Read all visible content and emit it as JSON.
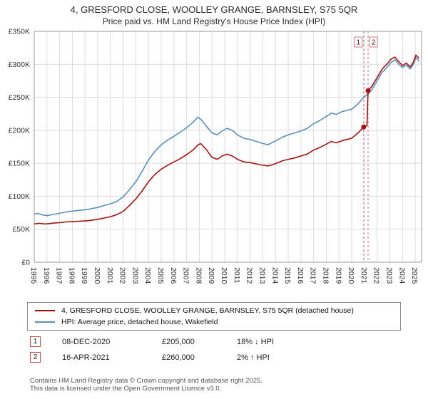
{
  "header": {
    "title": "4, GRESFORD CLOSE, WOOLLEY GRANGE, BARNSLEY, S75 5QR",
    "subtitle": "Price paid vs. HM Land Registry's House Price Index (HPI)"
  },
  "chart_data": {
    "type": "line",
    "x_range": [
      1995,
      2025.5
    ],
    "y_range": [
      0,
      350000
    ],
    "grid": true,
    "legend_position": "bottom",
    "y_ticks": [
      {
        "v": 0,
        "label": "£0"
      },
      {
        "v": 50000,
        "label": "£50K"
      },
      {
        "v": 100000,
        "label": "£100K"
      },
      {
        "v": 150000,
        "label": "£150K"
      },
      {
        "v": 200000,
        "label": "£200K"
      },
      {
        "v": 250000,
        "label": "£250K"
      },
      {
        "v": 300000,
        "label": "£300K"
      },
      {
        "v": 350000,
        "label": "£350K"
      }
    ],
    "x_ticks": [
      1995,
      1996,
      1997,
      1998,
      1999,
      2000,
      2001,
      2002,
      2003,
      2004,
      2005,
      2006,
      2007,
      2008,
      2009,
      2010,
      2011,
      2012,
      2013,
      2014,
      2015,
      2016,
      2017,
      2018,
      2019,
      2020,
      2021,
      2022,
      2023,
      2024,
      2025
    ],
    "series": [
      {
        "id": "price-paid",
        "name": "4, GRESFORD CLOSE, WOOLLEY GRANGE, BARNSLEY, S75 5QR (detached house)",
        "color": "#a51111",
        "points": [
          [
            1995.0,
            58000
          ],
          [
            1995.4,
            59000
          ],
          [
            1995.8,
            58000
          ],
          [
            1996.2,
            58500
          ],
          [
            1996.6,
            59500
          ],
          [
            1997.0,
            60000
          ],
          [
            1997.5,
            61000
          ],
          [
            1998.0,
            61500
          ],
          [
            1998.5,
            62000
          ],
          [
            1999.0,
            62500
          ],
          [
            1999.5,
            63500
          ],
          [
            2000.0,
            65000
          ],
          [
            2000.5,
            67000
          ],
          [
            2001.0,
            69000
          ],
          [
            2001.5,
            72000
          ],
          [
            2002.0,
            77000
          ],
          [
            2002.5,
            86000
          ],
          [
            2003.0,
            96000
          ],
          [
            2003.5,
            108000
          ],
          [
            2004.0,
            122000
          ],
          [
            2004.5,
            133000
          ],
          [
            2005.0,
            141000
          ],
          [
            2005.5,
            147000
          ],
          [
            2006.0,
            152000
          ],
          [
            2006.5,
            157000
          ],
          [
            2007.0,
            163000
          ],
          [
            2007.5,
            170000
          ],
          [
            2007.9,
            178000
          ],
          [
            2008.1,
            180000
          ],
          [
            2008.5,
            172000
          ],
          [
            2009.0,
            159000
          ],
          [
            2009.4,
            156000
          ],
          [
            2009.8,
            161000
          ],
          [
            2010.2,
            164000
          ],
          [
            2010.6,
            161000
          ],
          [
            2011.0,
            156000
          ],
          [
            2011.5,
            152000
          ],
          [
            2012.0,
            151000
          ],
          [
            2012.5,
            149000
          ],
          [
            2013.0,
            147000
          ],
          [
            2013.4,
            146000
          ],
          [
            2013.8,
            148000
          ],
          [
            2014.2,
            151000
          ],
          [
            2014.6,
            154000
          ],
          [
            2015.0,
            156000
          ],
          [
            2015.5,
            158000
          ],
          [
            2016.0,
            161000
          ],
          [
            2016.5,
            164000
          ],
          [
            2017.0,
            170000
          ],
          [
            2017.5,
            174000
          ],
          [
            2018.0,
            179000
          ],
          [
            2018.4,
            183000
          ],
          [
            2018.8,
            181000
          ],
          [
            2019.2,
            184000
          ],
          [
            2019.6,
            186000
          ],
          [
            2020.0,
            188000
          ],
          [
            2020.5,
            196000
          ],
          [
            2020.94,
            205000
          ],
          [
            2021.2,
            207000
          ],
          [
            2021.29,
            260000
          ],
          [
            2021.6,
            267000
          ],
          [
            2022.0,
            280000
          ],
          [
            2022.4,
            293000
          ],
          [
            2022.8,
            301000
          ],
          [
            2023.1,
            308000
          ],
          [
            2023.4,
            311000
          ],
          [
            2023.7,
            304000
          ],
          [
            2024.0,
            298000
          ],
          [
            2024.3,
            302000
          ],
          [
            2024.6,
            296000
          ],
          [
            2024.85,
            303000
          ],
          [
            2025.05,
            314000
          ],
          [
            2025.3,
            309000
          ]
        ]
      },
      {
        "id": "hpi",
        "name": "HPI: Average price, detached house, Wakefield",
        "color": "#5b8fc0",
        "points": [
          [
            1995.0,
            73000
          ],
          [
            1995.3,
            74000
          ],
          [
            1995.6,
            72000
          ],
          [
            1996.0,
            70500
          ],
          [
            1996.4,
            72000
          ],
          [
            1996.8,
            73500
          ],
          [
            1997.2,
            75000
          ],
          [
            1997.6,
            76500
          ],
          [
            1998.0,
            77500
          ],
          [
            1998.5,
            78500
          ],
          [
            1999.0,
            79500
          ],
          [
            1999.5,
            81000
          ],
          [
            2000.0,
            83000
          ],
          [
            2000.5,
            86000
          ],
          [
            2001.0,
            88500
          ],
          [
            2001.5,
            92000
          ],
          [
            2002.0,
            99000
          ],
          [
            2002.5,
            110000
          ],
          [
            2003.0,
            122000
          ],
          [
            2003.5,
            138000
          ],
          [
            2004.0,
            155000
          ],
          [
            2004.5,
            168000
          ],
          [
            2005.0,
            178000
          ],
          [
            2005.5,
            185000
          ],
          [
            2006.0,
            191000
          ],
          [
            2006.5,
            197000
          ],
          [
            2007.0,
            204000
          ],
          [
            2007.5,
            212000
          ],
          [
            2007.9,
            220000
          ],
          [
            2008.2,
            215000
          ],
          [
            2008.6,
            205000
          ],
          [
            2009.0,
            196000
          ],
          [
            2009.4,
            193000
          ],
          [
            2009.8,
            199000
          ],
          [
            2010.2,
            203000
          ],
          [
            2010.6,
            200000
          ],
          [
            2011.0,
            193000
          ],
          [
            2011.5,
            188000
          ],
          [
            2012.0,
            186000
          ],
          [
            2012.5,
            183000
          ],
          [
            2013.0,
            180000
          ],
          [
            2013.4,
            178000
          ],
          [
            2013.8,
            182000
          ],
          [
            2014.2,
            186000
          ],
          [
            2014.6,
            190000
          ],
          [
            2015.0,
            193000
          ],
          [
            2015.5,
            196000
          ],
          [
            2016.0,
            199000
          ],
          [
            2016.5,
            203000
          ],
          [
            2017.0,
            210000
          ],
          [
            2017.5,
            215000
          ],
          [
            2018.0,
            221000
          ],
          [
            2018.4,
            226000
          ],
          [
            2018.8,
            224000
          ],
          [
            2019.2,
            228000
          ],
          [
            2019.6,
            230000
          ],
          [
            2020.0,
            232000
          ],
          [
            2020.5,
            240000
          ],
          [
            2020.94,
            250000
          ],
          [
            2021.29,
            255000
          ],
          [
            2021.6,
            262000
          ],
          [
            2022.0,
            275000
          ],
          [
            2022.4,
            288000
          ],
          [
            2022.8,
            296000
          ],
          [
            2023.1,
            303000
          ],
          [
            2023.4,
            307000
          ],
          [
            2023.7,
            300000
          ],
          [
            2024.0,
            295000
          ],
          [
            2024.3,
            299000
          ],
          [
            2024.6,
            293000
          ],
          [
            2024.85,
            300000
          ],
          [
            2025.05,
            310000
          ],
          [
            2025.3,
            305000
          ]
        ]
      }
    ],
    "sale_vlines": [
      2020.94,
      2021.29
    ],
    "markers": [
      {
        "label": "1",
        "x": 2020.94,
        "y": 205000
      },
      {
        "label": "2",
        "x": 2021.29,
        "y": 260000
      }
    ]
  },
  "legend": {
    "items": [
      {
        "label": "4, GRESFORD CLOSE, WOOLLEY GRANGE, BARNSLEY, S75 5QR (detached house)",
        "color": "#a51111"
      },
      {
        "label": "HPI: Average price, detached house, Wakefield",
        "color": "#5b8fc0"
      }
    ]
  },
  "transactions": [
    {
      "num": "1",
      "date": "08-DEC-2020",
      "price": "£205,000",
      "hpi": "18% ↓ HPI"
    },
    {
      "num": "2",
      "date": "16-APR-2021",
      "price": "£260,000",
      "hpi": "2% ↑ HPI"
    }
  ],
  "footer": {
    "line1": "Contains HM Land Registry data © Crown copyright and database right 2025.",
    "line2": "This data is licensed under the Open Government Licence v3.0."
  }
}
